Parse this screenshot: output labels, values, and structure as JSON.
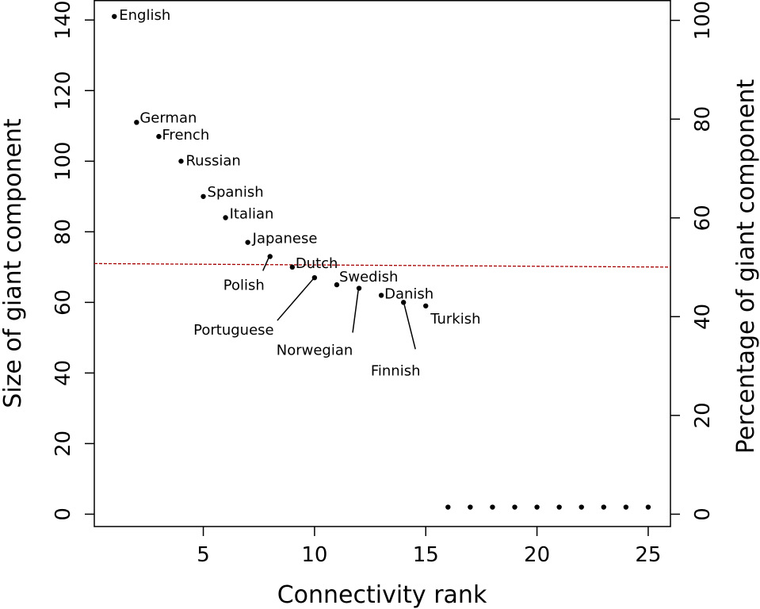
{
  "chart_data": {
    "type": "scatter",
    "title": "",
    "xlabel": "Connectivity rank",
    "ylabel": "Size of giant component",
    "ylabel_right": "Percentage of giant component",
    "xlim": [
      0.1,
      26.0
    ],
    "ylim": [
      -3.5,
      145.5
    ],
    "y2lim": [
      -2.5,
      104.0
    ],
    "x_ticks": [
      5,
      10,
      15,
      20,
      25
    ],
    "y_ticks": [
      0,
      20,
      40,
      60,
      80,
      100,
      120,
      140
    ],
    "y2_ticks": [
      0,
      20,
      40,
      60,
      80,
      100
    ],
    "grid": false,
    "reference_line": {
      "y_start": 71,
      "y_end": 70,
      "style": "dashed",
      "color": "#a50000"
    },
    "points": [
      {
        "x": 1,
        "y": 141,
        "label": "English"
      },
      {
        "x": 2,
        "y": 111,
        "label": "German"
      },
      {
        "x": 3,
        "y": 107,
        "label": "French"
      },
      {
        "x": 4,
        "y": 100,
        "label": "Russian"
      },
      {
        "x": 5,
        "y": 90,
        "label": "Spanish"
      },
      {
        "x": 6,
        "y": 84,
        "label": "Italian"
      },
      {
        "x": 7,
        "y": 77,
        "label": "Japanese"
      },
      {
        "x": 8,
        "y": 73,
        "label": "Polish"
      },
      {
        "x": 9,
        "y": 70,
        "label": "Dutch"
      },
      {
        "x": 10,
        "y": 67,
        "label": "Portuguese"
      },
      {
        "x": 11,
        "y": 65,
        "label": "Swedish"
      },
      {
        "x": 12,
        "y": 64,
        "label": "Norwegian"
      },
      {
        "x": 13,
        "y": 62,
        "label": "Danish"
      },
      {
        "x": 14,
        "y": 60,
        "label": "Finnish"
      },
      {
        "x": 15,
        "y": 59,
        "label": "Turkish"
      },
      {
        "x": 16,
        "y": 2,
        "label": ""
      },
      {
        "x": 17,
        "y": 2,
        "label": ""
      },
      {
        "x": 18,
        "y": 2,
        "label": ""
      },
      {
        "x": 19,
        "y": 2,
        "label": ""
      },
      {
        "x": 20,
        "y": 2,
        "label": ""
      },
      {
        "x": 21,
        "y": 2,
        "label": ""
      },
      {
        "x": 22,
        "y": 2,
        "label": ""
      },
      {
        "x": 23,
        "y": 2,
        "label": ""
      },
      {
        "x": 24,
        "y": 2,
        "label": ""
      },
      {
        "x": 25,
        "y": 2,
        "label": ""
      }
    ]
  }
}
